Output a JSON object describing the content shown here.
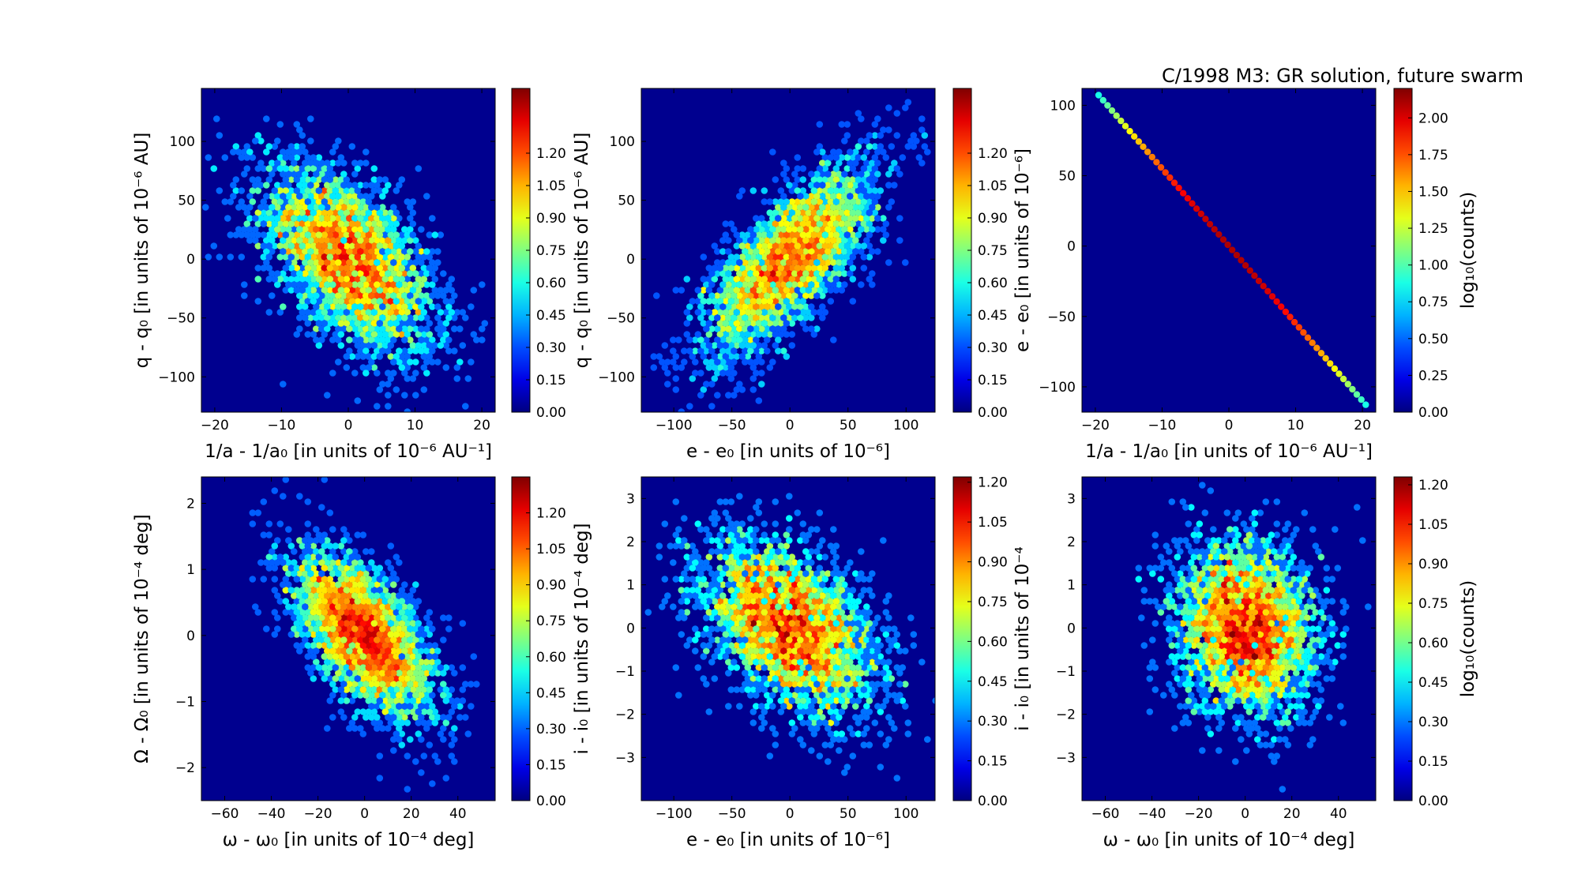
{
  "figure": {
    "title": "C/1998 M3:  GR solution, future swarm",
    "background_color": "#00008f",
    "colormap": "jet"
  },
  "chart_data": [
    {
      "type": "heatmap",
      "id": "p1",
      "xlabel": "1/a - 1/a₀ [in units of 10⁻⁶ AU⁻¹]",
      "ylabel": "q - q₀ [in units of 10⁻⁶ AU]",
      "xlim": [
        -22,
        22
      ],
      "ylim": [
        -130,
        145
      ],
      "xticks": [
        -20,
        -10,
        0,
        10,
        20
      ],
      "yticks": [
        -100,
        -50,
        0,
        50,
        100
      ],
      "colorbar": {
        "min": 0.0,
        "max": 1.5,
        "ticks": [
          "0.00",
          "0.15",
          "0.30",
          "0.45",
          "0.60",
          "0.75",
          "0.90",
          "1.05",
          "1.20"
        ],
        "label": ""
      },
      "distribution": {
        "kind": "ellipse",
        "center": [
          0,
          0
        ],
        "sd": [
          6.5,
          40
        ],
        "corr": -0.55,
        "npoints": 3500,
        "peak": 1.38
      }
    },
    {
      "type": "heatmap",
      "id": "p2",
      "xlabel": "e - e₀ [in units of 10⁻⁶]",
      "ylabel": "q - q₀ [in units of 10⁻⁶ AU]",
      "xlim": [
        -128,
        125
      ],
      "ylim": [
        -130,
        145
      ],
      "xticks": [
        -100,
        -50,
        0,
        50,
        100
      ],
      "yticks": [
        -100,
        -50,
        0,
        50,
        100
      ],
      "colorbar": {
        "min": 0.0,
        "max": 1.5,
        "ticks": [
          "0.00",
          "0.15",
          "0.30",
          "0.45",
          "0.60",
          "0.75",
          "0.90",
          "1.05",
          "1.20"
        ],
        "label": ""
      },
      "distribution": {
        "kind": "ellipse",
        "center": [
          0,
          0
        ],
        "sd": [
          36,
          40
        ],
        "corr": 0.72,
        "npoints": 3500,
        "peak": 1.38
      }
    },
    {
      "type": "heatmap",
      "id": "p3",
      "xlabel": "1/a - 1/a₀ [in units of 10⁻⁶ AU⁻¹]",
      "ylabel": "e - e₀ [in units of 10⁻⁶]",
      "xlim": [
        -22,
        22
      ],
      "ylim": [
        -118,
        112
      ],
      "xticks": [
        -20,
        -10,
        0,
        10,
        20
      ],
      "yticks": [
        -100,
        -50,
        0,
        50,
        100
      ],
      "colorbar": {
        "min": 0.0,
        "max": 2.2,
        "ticks": [
          "0.00",
          "0.25",
          "0.50",
          "0.75",
          "1.00",
          "1.25",
          "1.50",
          "1.75",
          "2.00"
        ],
        "label": "log₁₀(counts)"
      },
      "distribution": {
        "kind": "line",
        "slope": -5.5,
        "x_range": [
          -19.5,
          20.5
        ],
        "peak": 2.1
      }
    },
    {
      "type": "heatmap",
      "id": "p4",
      "xlabel": "ω - ω₀ [in units of 10⁻⁴ deg]",
      "ylabel": "Ω - Ω₀ [in units of 10⁻⁴ deg]",
      "xlim": [
        -70,
        56
      ],
      "ylim": [
        -2.5,
        2.4
      ],
      "xticks": [
        -60,
        -40,
        -20,
        0,
        20,
        40
      ],
      "yticks": [
        -2,
        -1,
        0,
        1,
        2
      ],
      "colorbar": {
        "min": 0.0,
        "max": 1.35,
        "ticks": [
          "0.00",
          "0.15",
          "0.30",
          "0.45",
          "0.60",
          "0.75",
          "0.90",
          "1.05",
          "1.20"
        ],
        "label": ""
      },
      "distribution": {
        "kind": "ellipse",
        "center": [
          0,
          0
        ],
        "sd": [
          15,
          0.62
        ],
        "corr": -0.6,
        "npoints": 3500,
        "peak": 1.28
      }
    },
    {
      "type": "heatmap",
      "id": "p5",
      "xlabel": "e - e₀ [in units of 10⁻⁶]",
      "ylabel": "i - i₀ [in units of 10⁻⁴ deg]",
      "xlim": [
        -128,
        125
      ],
      "ylim": [
        -4.0,
        3.5
      ],
      "xticks": [
        -100,
        -50,
        0,
        50,
        100
      ],
      "yticks": [
        -3,
        -2,
        -1,
        0,
        1,
        2,
        3
      ],
      "colorbar": {
        "min": 0.0,
        "max": 1.22,
        "ticks": [
          "0.00",
          "0.15",
          "0.30",
          "0.45",
          "0.60",
          "0.75",
          "0.90",
          "1.05",
          "1.20"
        ],
        "label": ""
      },
      "distribution": {
        "kind": "ellipse",
        "center": [
          0,
          0
        ],
        "sd": [
          38,
          1.0
        ],
        "corr": -0.4,
        "npoints": 3500,
        "peak": 1.2
      }
    },
    {
      "type": "heatmap",
      "id": "p6",
      "xlabel": "ω - ω₀ [in units of 10⁻⁴ deg]",
      "ylabel": "i - i₀ [in units of 10⁻⁴",
      "xlim": [
        -70,
        56
      ],
      "ylim": [
        -4.0,
        3.5
      ],
      "xticks": [
        -60,
        -40,
        -20,
        0,
        20,
        40
      ],
      "yticks": [
        -3,
        -2,
        -1,
        0,
        1,
        2,
        3
      ],
      "colorbar": {
        "min": 0.0,
        "max": 1.23,
        "ticks": [
          "0.00",
          "0.15",
          "0.30",
          "0.45",
          "0.60",
          "0.75",
          "0.90",
          "1.05",
          "1.20"
        ],
        "label": "log₁₀(counts)"
      },
      "distribution": {
        "kind": "ellipse",
        "center": [
          0,
          0
        ],
        "sd": [
          15,
          1.0
        ],
        "corr": -0.1,
        "npoints": 3500,
        "peak": 1.22
      }
    }
  ]
}
